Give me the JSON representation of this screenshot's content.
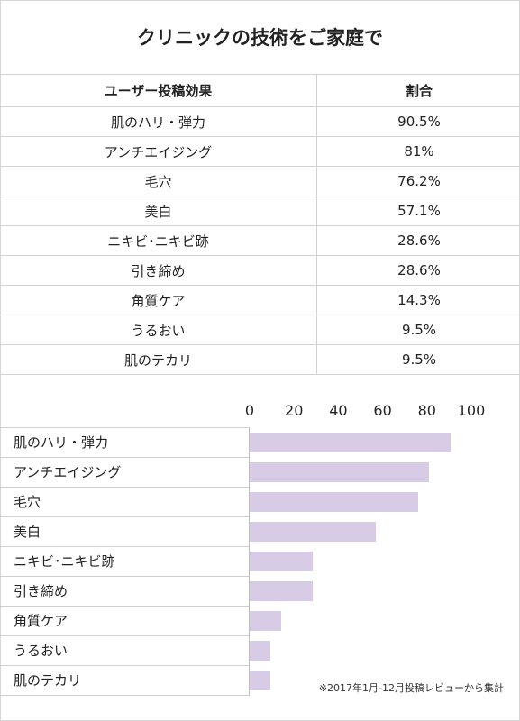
{
  "title": "クリニックの技術をご家庭で",
  "table": {
    "headers": [
      "ユーザー投稿効果",
      "割合"
    ],
    "rows": [
      {
        "label": "肌のハリ・弾力",
        "value": "90.5%"
      },
      {
        "label": "アンチエイジング",
        "value": "81%"
      },
      {
        "label": "毛穴",
        "value": "76.2%"
      },
      {
        "label": "美白",
        "value": "57.1%"
      },
      {
        "label": "ニキビ･ニキビ跡",
        "value": "28.6%"
      },
      {
        "label": "引き締め",
        "value": "28.6%"
      },
      {
        "label": "角質ケア",
        "value": "14.3%"
      },
      {
        "label": "うるおい",
        "value": "9.5%"
      },
      {
        "label": "肌のテカリ",
        "value": "9.5%"
      }
    ]
  },
  "chart_data": {
    "type": "bar",
    "orientation": "horizontal",
    "categories": [
      "肌のハリ・弾力",
      "アンチエイジング",
      "毛穴",
      "美白",
      "ニキビ･ニキビ跡",
      "引き締め",
      "角質ケア",
      "うるおい",
      "肌のテカリ"
    ],
    "values": [
      90.5,
      81,
      76.2,
      57.1,
      28.6,
      28.6,
      14.3,
      9.5,
      9.5
    ],
    "xlim": [
      0,
      100
    ],
    "ticks": [
      "0",
      "20",
      "40",
      "60",
      "80",
      "100"
    ],
    "bar_color": "#d7cbe5",
    "grid": false
  },
  "footnote": "※2017年1月-12月投稿レビューから集計"
}
